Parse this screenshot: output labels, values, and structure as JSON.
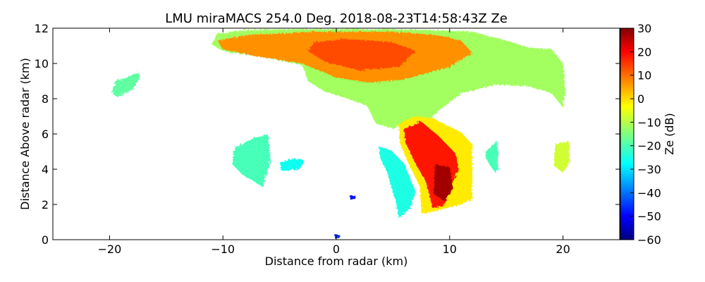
{
  "chart_data": {
    "type": "heatmap",
    "title": "LMU miraMACS 254.0 Deg. 2018-08-23T14:58:43Z  Ze",
    "xlabel": "Distance from radar (km)",
    "ylabel": "Distance Above radar  (km)",
    "xlim": [
      -25,
      25
    ],
    "ylim": [
      0,
      12
    ],
    "xticks": [
      -20,
      -10,
      0,
      10,
      20
    ],
    "yticks": [
      0,
      2,
      4,
      6,
      8,
      10,
      12
    ],
    "colorbar": {
      "label": "Ze (dB)",
      "range": [
        -60,
        30
      ],
      "ticks": [
        30,
        20,
        10,
        0,
        -10,
        -20,
        -30,
        -40,
        -50,
        -60
      ],
      "colormap": "jet"
    },
    "regions": [
      {
        "name": "upper-anvil",
        "polygon": [
          [
            -11,
            11.1
          ],
          [
            -10.5,
            11.7
          ],
          [
            -8,
            11.9
          ],
          [
            -3,
            11.95
          ],
          [
            3,
            11.95
          ],
          [
            8,
            11.9
          ],
          [
            12,
            11.8
          ],
          [
            15,
            11.3
          ],
          [
            17,
            10.9
          ],
          [
            19,
            10.8
          ],
          [
            20,
            10
          ],
          [
            20.2,
            8.5
          ],
          [
            20,
            7.5
          ],
          [
            19,
            8.3
          ],
          [
            17,
            8.7
          ],
          [
            14,
            8.8
          ],
          [
            11,
            8.3
          ],
          [
            9,
            7.3
          ],
          [
            8,
            6.7
          ],
          [
            7,
            6.5
          ],
          [
            6,
            6.6
          ],
          [
            5,
            6.3
          ],
          [
            3.5,
            6.6
          ],
          [
            2.7,
            7.6
          ],
          [
            1,
            8
          ],
          [
            -1,
            8.4
          ],
          [
            -2.5,
            9
          ],
          [
            -3,
            9.9
          ],
          [
            -6,
            10.3
          ],
          [
            -10,
            10.7
          ]
        ],
        "ze": -12
      },
      {
        "name": "anvil-core",
        "polygon": [
          [
            -10.5,
            11.3
          ],
          [
            -8,
            11.6
          ],
          [
            -2,
            11.8
          ],
          [
            5,
            11.8
          ],
          [
            9,
            11.6
          ],
          [
            11,
            11.3
          ],
          [
            12,
            10.6
          ],
          [
            10,
            9.8
          ],
          [
            6,
            9.1
          ],
          [
            3,
            8.9
          ],
          [
            0,
            9.2
          ],
          [
            -3,
            10
          ],
          [
            -7,
            10.4
          ],
          [
            -10,
            10.8
          ]
        ],
        "ze": 6
      },
      {
        "name": "anvil-max",
        "polygon": [
          [
            -2,
            11.2
          ],
          [
            1,
            11.4
          ],
          [
            5,
            11.2
          ],
          [
            7,
            10.7
          ],
          [
            5.5,
            9.8
          ],
          [
            2,
            9.6
          ],
          [
            -1,
            10.1
          ],
          [
            -2.5,
            10.7
          ]
        ],
        "ze": 12
      },
      {
        "name": "convective-column",
        "polygon": [
          [
            5.5,
            6.6
          ],
          [
            7,
            7
          ],
          [
            8.5,
            6.9
          ],
          [
            11,
            6.1
          ],
          [
            12,
            5.4
          ],
          [
            12,
            2.3
          ],
          [
            11,
            2
          ],
          [
            8,
            1.5
          ],
          [
            7.5,
            1.5
          ],
          [
            7.4,
            3
          ],
          [
            6.6,
            4
          ],
          [
            5.6,
            5.5
          ]
        ],
        "ze": -2
      },
      {
        "name": "convective-core",
        "polygon": [
          [
            6,
            6.3
          ],
          [
            7.5,
            6.7
          ],
          [
            9,
            5.9
          ],
          [
            10.5,
            4.9
          ],
          [
            10.8,
            4
          ],
          [
            10,
            2.9
          ],
          [
            9.5,
            1.9
          ],
          [
            8.5,
            1.8
          ],
          [
            7.9,
            3.3
          ],
          [
            7,
            4.3
          ],
          [
            6.1,
            5.5
          ]
        ],
        "ze": 17
      },
      {
        "name": "core-max",
        "polygon": [
          [
            8.7,
            4.3
          ],
          [
            10,
            4.1
          ],
          [
            10.3,
            2.9
          ],
          [
            9.5,
            2.2
          ],
          [
            8.6,
            2.6
          ]
        ],
        "ze": 27
      },
      {
        "name": "left-echo",
        "polygon": [
          [
            -19.8,
            8.3
          ],
          [
            -19.5,
            9
          ],
          [
            -18.5,
            9.2
          ],
          [
            -17.5,
            9.5
          ],
          [
            -17.3,
            9.2
          ],
          [
            -18,
            8.5
          ],
          [
            -19.3,
            8.1
          ]
        ],
        "ze": -18
      },
      {
        "name": "mid-echo-left",
        "polygon": [
          [
            -9,
            5.2
          ],
          [
            -7.5,
            5.7
          ],
          [
            -6,
            6
          ],
          [
            -5.8,
            4.5
          ],
          [
            -6.5,
            3
          ],
          [
            -7,
            3.2
          ],
          [
            -8.3,
            3.7
          ],
          [
            -9.2,
            4.3
          ]
        ],
        "ze": -20
      },
      {
        "name": "mid-echo-small",
        "polygon": [
          [
            -5,
            4.4
          ],
          [
            -3.8,
            4.6
          ],
          [
            -2.8,
            4.5
          ],
          [
            -3.3,
            4
          ],
          [
            -4.8,
            3.9
          ]
        ],
        "ze": -25
      },
      {
        "name": "slanted-streak",
        "polygon": [
          [
            3.7,
            5.3
          ],
          [
            4.8,
            5.1
          ],
          [
            6,
            4.3
          ],
          [
            7,
            2.7
          ],
          [
            6.5,
            1.8
          ],
          [
            5.5,
            1.2
          ],
          [
            5.3,
            2
          ],
          [
            4.5,
            3.8
          ],
          [
            3.9,
            4.6
          ]
        ],
        "ze": -24
      },
      {
        "name": "right-echo-a",
        "polygon": [
          [
            13.2,
            5
          ],
          [
            14.2,
            5.6
          ],
          [
            14.3,
            4
          ],
          [
            14,
            3.8
          ],
          [
            13.2,
            4.6
          ]
        ],
        "ze": -20
      },
      {
        "name": "right-echo-b",
        "polygon": [
          [
            19.3,
            5.4
          ],
          [
            20.5,
            5.6
          ],
          [
            20.6,
            4.4
          ],
          [
            20,
            3.8
          ],
          [
            19.2,
            4.2
          ]
        ],
        "ze": -8
      },
      {
        "name": "ground-clutter",
        "polygon": [
          [
            -0.2,
            0.3
          ],
          [
            0.3,
            0.3
          ],
          [
            0.2,
            0.05
          ],
          [
            -0.1,
            0.05
          ]
        ],
        "ze": -45
      },
      {
        "name": "speck",
        "polygon": [
          [
            1.2,
            2.5
          ],
          [
            1.7,
            2.5
          ],
          [
            1.7,
            2.3
          ],
          [
            1.2,
            2.3
          ]
        ],
        "ze": -48
      }
    ]
  }
}
